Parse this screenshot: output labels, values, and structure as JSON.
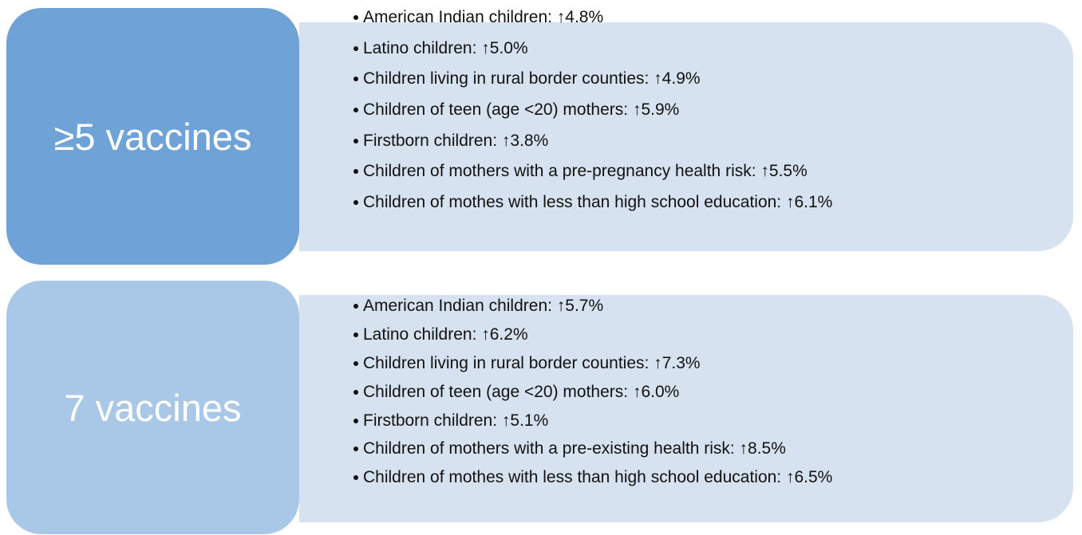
{
  "groups": [
    {
      "label": "≥5 vaccines",
      "items": [
        "American Indian children: ↑4.8%",
        "Latino children: ↑5.0%",
        "Children living in rural border counties: ↑4.9%",
        "Children of teen (age <20) mothers: ↑5.9%",
        "Firstborn children: ↑3.8%",
        "Children of mothers with a pre-pregnancy health risk: ↑5.5%",
        "Children of mothes with less than high school education: ↑6.1%"
      ]
    },
    {
      "label": "7 vaccines",
      "items": [
        "American Indian children: ↑5.7%",
        "Latino children: ↑6.2%",
        "Children living in rural border counties: ↑7.3%",
        "Children of teen (age <20) mothers: ↑6.0%",
        "Firstborn children: ↑5.1%",
        "Children of mothers with a pre-existing health risk: ↑8.5%",
        "Children of mothes with less than high school education: ↑6.5%"
      ]
    }
  ]
}
